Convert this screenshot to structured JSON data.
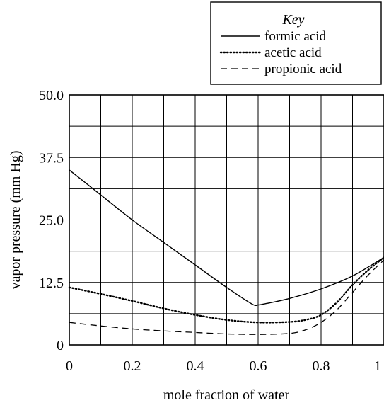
{
  "chart_data": {
    "type": "line",
    "title": "",
    "xlabel": "mole fraction of water",
    "ylabel": "vapor pressure (mm Hg)",
    "xlim": [
      0,
      1
    ],
    "ylim": [
      0,
      50
    ],
    "grid": true,
    "x_ticks": [
      0,
      0.2,
      0.4,
      0.6,
      0.8,
      1
    ],
    "x_tick_labels": [
      "0",
      "0.2",
      "0.4",
      "0.6",
      "0.8",
      "1"
    ],
    "y_ticks": [
      0,
      12.5,
      25.0,
      37.5,
      50.0
    ],
    "y_tick_labels": [
      "0",
      "12.5",
      "25.0",
      "37.5",
      "50.0"
    ],
    "legend": {
      "title": "Key",
      "position": "top-right"
    },
    "series": [
      {
        "name": "formic acid",
        "style": "solid",
        "x": [
          0,
          0.1,
          0.2,
          0.3,
          0.4,
          0.5,
          0.58,
          0.6,
          0.62,
          0.7,
          0.8,
          0.9,
          1.0
        ],
        "y": [
          35.0,
          30.0,
          25.0,
          20.5,
          16.0,
          11.5,
          8.2,
          8.0,
          8.2,
          9.3,
          11.2,
          13.8,
          17.5
        ]
      },
      {
        "name": "acetic acid",
        "style": "dotted",
        "x": [
          0,
          0.1,
          0.2,
          0.3,
          0.4,
          0.5,
          0.6,
          0.7,
          0.75,
          0.8,
          0.85,
          0.9,
          0.95,
          1.0
        ],
        "y": [
          11.5,
          10.2,
          8.8,
          7.3,
          6.0,
          5.0,
          4.5,
          4.6,
          5.0,
          6.0,
          8.5,
          12.0,
          15.0,
          17.5
        ]
      },
      {
        "name": "propionic acid",
        "style": "dashed",
        "x": [
          0,
          0.1,
          0.2,
          0.3,
          0.4,
          0.5,
          0.6,
          0.7,
          0.75,
          0.8,
          0.85,
          0.9,
          0.95,
          1.0
        ],
        "y": [
          4.5,
          3.8,
          3.2,
          2.8,
          2.5,
          2.2,
          2.1,
          2.3,
          3.0,
          4.5,
          7.0,
          10.5,
          14.0,
          17.0
        ]
      }
    ]
  }
}
